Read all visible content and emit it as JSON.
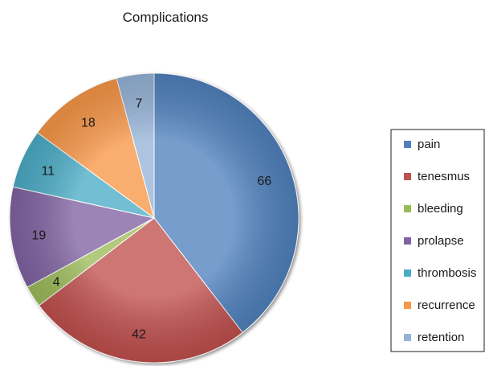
{
  "chart_data": {
    "type": "pie",
    "title": "Complications",
    "categories": [
      "pain",
      "tenesmus",
      "bleeding",
      "prolapse",
      "thrombosis",
      "recurrence",
      "retention"
    ],
    "values": [
      66,
      42,
      4,
      19,
      11,
      18,
      7
    ],
    "colors": [
      "#4f81bd",
      "#c0504d",
      "#9bbb59",
      "#8064a2",
      "#4bacc6",
      "#f79646",
      "#95b3d7"
    ],
    "legend_position": "right",
    "start_angle": "12 o'clock",
    "direction": "clockwise"
  }
}
